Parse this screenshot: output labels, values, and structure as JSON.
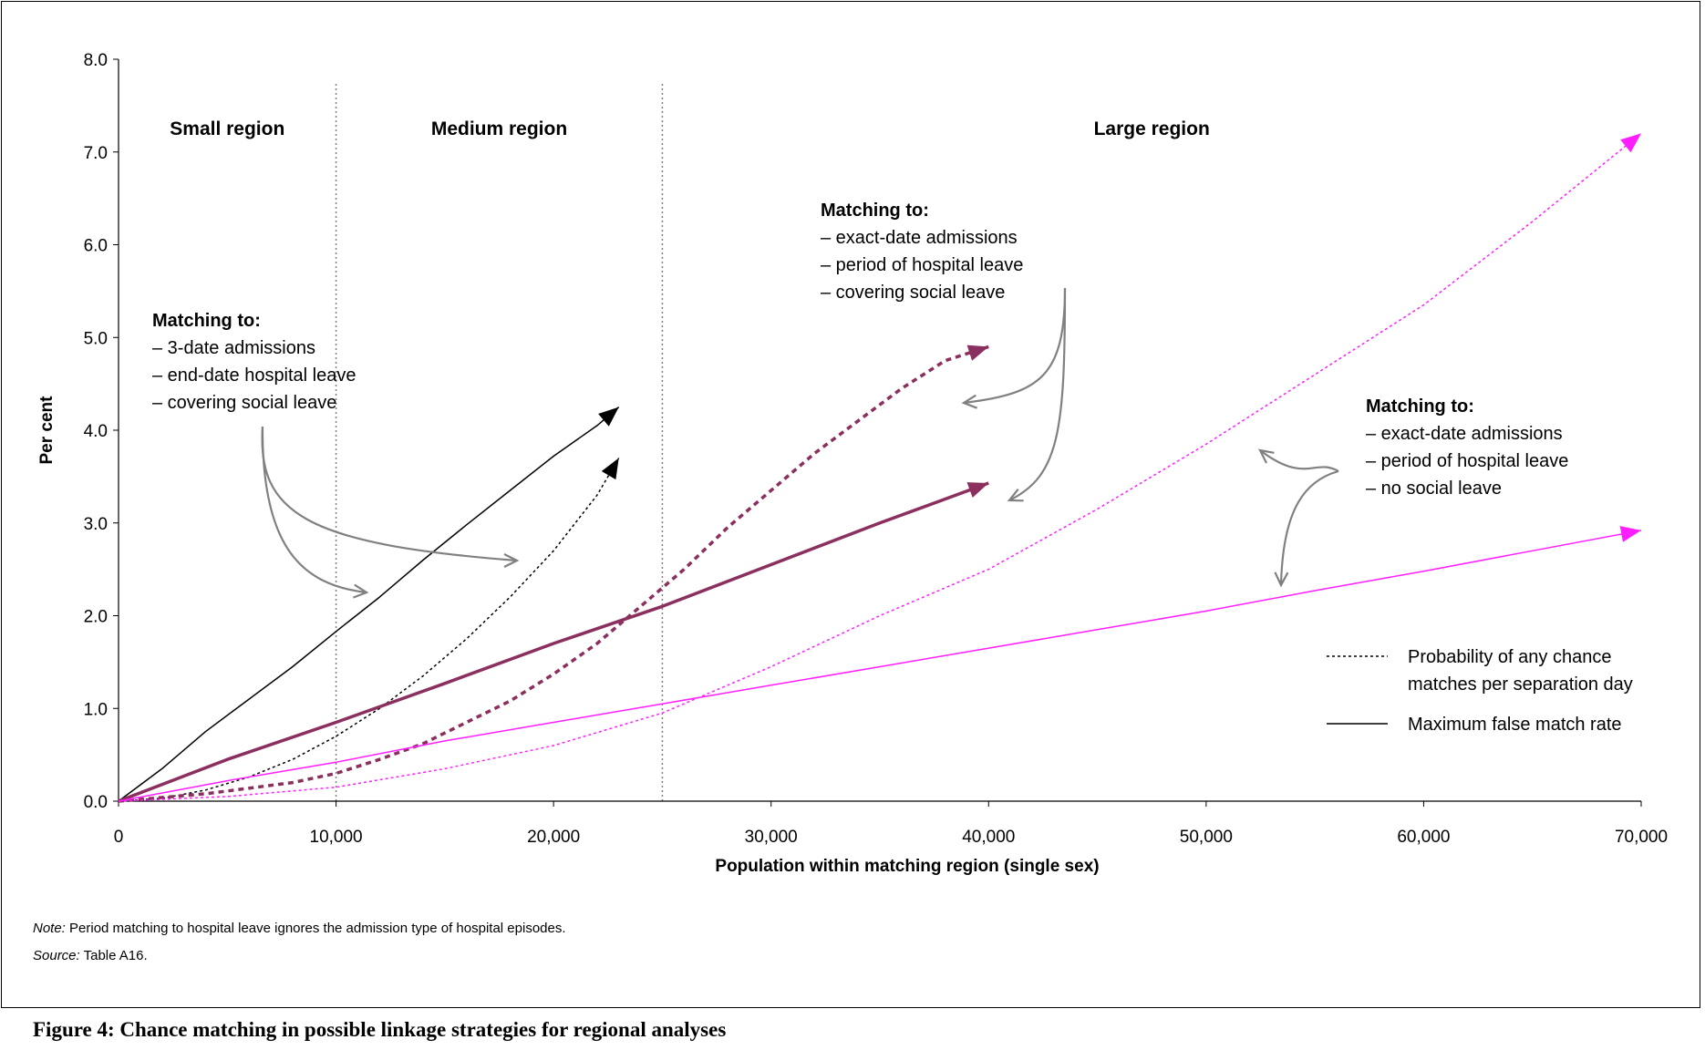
{
  "notes": {
    "note_label": "Note:",
    "note_text": " Period matching to hospital leave ignores the admission type of hospital episodes.",
    "source_label": "Source:",
    "source_text": " Table A16."
  },
  "caption": "Figure 4: Chance matching in possible linkage strategies for regional analyses",
  "chart_data": {
    "type": "line",
    "title": "",
    "xlabel": "Population within matching region (single sex)",
    "ylabel": "Per cent",
    "xlim": [
      0,
      70000
    ],
    "ylim": [
      0,
      8
    ],
    "x_ticks": [
      0,
      10000,
      20000,
      30000,
      40000,
      50000,
      60000,
      70000
    ],
    "x_tick_labels": [
      "0",
      "10,000",
      "20,000",
      "30,000",
      "40,000",
      "50,000",
      "60,000",
      "70,000"
    ],
    "y_ticks": [
      0,
      1,
      2,
      3,
      4,
      5,
      6,
      7,
      8
    ],
    "y_tick_labels": [
      "0.0",
      "1.0",
      "2.0",
      "3.0",
      "4.0",
      "5.0",
      "6.0",
      "7.0",
      "8.0"
    ],
    "grid": false,
    "colors": {
      "black": "#000000",
      "plum": "#8B2F5E",
      "magenta": "#FF1EFF",
      "annotation_arrow": "#808080",
      "region_divider": "#808080"
    },
    "regions": [
      {
        "label": "Small region",
        "from": 0,
        "to": 10000
      },
      {
        "label": "Medium region",
        "from": 10000,
        "to": 25000
      },
      {
        "label": "Large region",
        "from": 25000,
        "to": 70000
      }
    ],
    "region_boundaries": [
      10000,
      25000
    ],
    "series": [
      {
        "color": "black",
        "style": "dotted",
        "points": [
          [
            0,
            0
          ],
          [
            2000,
            0.03
          ],
          [
            4000,
            0.12
          ],
          [
            6000,
            0.26
          ],
          [
            8000,
            0.45
          ],
          [
            10000,
            0.7
          ],
          [
            12000,
            1.0
          ],
          [
            14000,
            1.35
          ],
          [
            16000,
            1.75
          ],
          [
            18000,
            2.2
          ],
          [
            20000,
            2.7
          ],
          [
            22000,
            3.3
          ],
          [
            23000,
            3.7
          ]
        ]
      },
      {
        "color": "black",
        "style": "solid",
        "points": [
          [
            0,
            0
          ],
          [
            2000,
            0.35
          ],
          [
            4000,
            0.75
          ],
          [
            6000,
            1.1
          ],
          [
            8000,
            1.45
          ],
          [
            10000,
            1.83
          ],
          [
            12000,
            2.2
          ],
          [
            14000,
            2.6
          ],
          [
            16000,
            2.98
          ],
          [
            18000,
            3.35
          ],
          [
            20000,
            3.72
          ],
          [
            22000,
            4.05
          ],
          [
            23000,
            4.25
          ]
        ]
      },
      {
        "color": "plum",
        "style": "dotted",
        "points": [
          [
            0,
            0
          ],
          [
            4000,
            0.08
          ],
          [
            8000,
            0.2
          ],
          [
            10000,
            0.3
          ],
          [
            12000,
            0.45
          ],
          [
            14000,
            0.62
          ],
          [
            16000,
            0.85
          ],
          [
            18000,
            1.08
          ],
          [
            20000,
            1.37
          ],
          [
            22000,
            1.7
          ],
          [
            24000,
            2.1
          ],
          [
            26000,
            2.5
          ],
          [
            28000,
            2.95
          ],
          [
            30000,
            3.35
          ],
          [
            32000,
            3.75
          ],
          [
            34000,
            4.1
          ],
          [
            36000,
            4.45
          ],
          [
            38000,
            4.75
          ],
          [
            40000,
            4.9
          ]
        ]
      },
      {
        "color": "plum",
        "style": "solid",
        "points": [
          [
            0,
            0
          ],
          [
            5000,
            0.45
          ],
          [
            10000,
            0.85
          ],
          [
            15000,
            1.27
          ],
          [
            20000,
            1.7
          ],
          [
            25000,
            2.1
          ],
          [
            30000,
            2.55
          ],
          [
            35000,
            3.0
          ],
          [
            40000,
            3.43
          ]
        ]
      },
      {
        "color": "magenta",
        "style": "dotted",
        "points": [
          [
            0,
            0
          ],
          [
            5000,
            0.05
          ],
          [
            10000,
            0.15
          ],
          [
            15000,
            0.35
          ],
          [
            20000,
            0.6
          ],
          [
            25000,
            0.95
          ],
          [
            30000,
            1.45
          ],
          [
            35000,
            2.0
          ],
          [
            40000,
            2.5
          ],
          [
            45000,
            3.15
          ],
          [
            50000,
            3.85
          ],
          [
            55000,
            4.6
          ],
          [
            60000,
            5.35
          ],
          [
            65000,
            6.25
          ],
          [
            70000,
            7.2
          ]
        ]
      },
      {
        "color": "magenta",
        "style": "solid",
        "points": [
          [
            0,
            0
          ],
          [
            5000,
            0.22
          ],
          [
            10000,
            0.42
          ],
          [
            15000,
            0.65
          ],
          [
            20000,
            0.85
          ],
          [
            25000,
            1.05
          ],
          [
            30000,
            1.25
          ],
          [
            35000,
            1.45
          ],
          [
            40000,
            1.65
          ],
          [
            45000,
            1.85
          ],
          [
            50000,
            2.05
          ],
          [
            55000,
            2.27
          ],
          [
            60000,
            2.48
          ],
          [
            65000,
            2.7
          ],
          [
            70000,
            2.92
          ]
        ]
      }
    ],
    "annotations": [
      {
        "heading": "Matching to:",
        "lines": [
          "– 3-date admissions",
          "– end-date hospital leave",
          "– covering social leave"
        ]
      },
      {
        "heading": "Matching to:",
        "lines": [
          "– exact-date admissions",
          "– period of hospital leave",
          "– covering social leave"
        ]
      },
      {
        "heading": "Matching to:",
        "lines": [
          "– exact-date admissions",
          "– period of hospital leave",
          "– no social leave"
        ]
      }
    ],
    "legend": {
      "placement": "bottom-right",
      "entries": [
        {
          "style": "dotted",
          "label_lines": [
            "Probability of any chance",
            "matches per separation day"
          ]
        },
        {
          "style": "solid",
          "label_lines": [
            "Maximum false match rate"
          ]
        }
      ]
    }
  }
}
